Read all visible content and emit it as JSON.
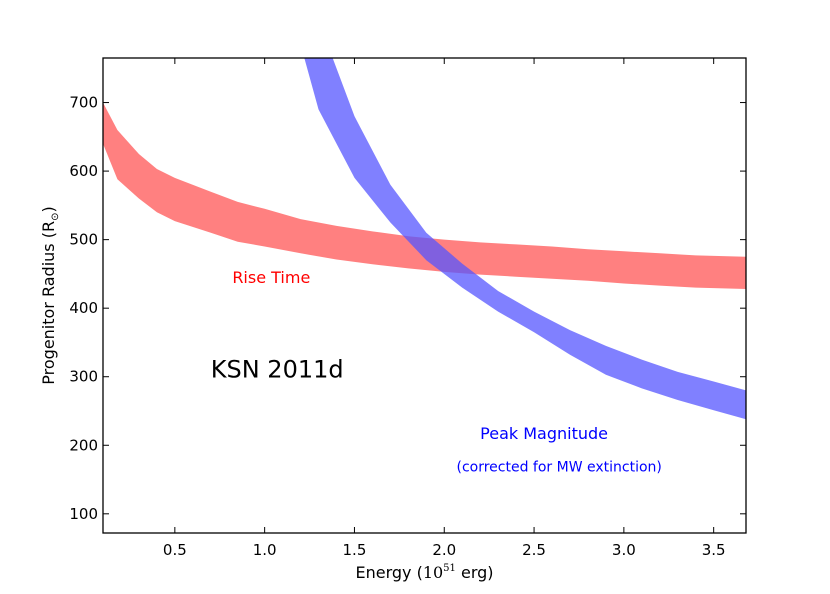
{
  "chart_data": {
    "type": "area",
    "title": "",
    "xlabel": {
      "prefix": "Energy (",
      "base": "10",
      "exp": "51",
      "suffix": " erg)"
    },
    "ylabel": {
      "prefix": "Progenitor Radius (R",
      "sub": "⊙",
      "suffix": ")"
    },
    "xlim": [
      0.1,
      3.68
    ],
    "ylim": [
      72,
      765
    ],
    "xticks": [
      0.5,
      1.0,
      1.5,
      2.0,
      2.5,
      3.0,
      3.5
    ],
    "xtick_labels": [
      "0.5",
      "1.0",
      "1.5",
      "2.0",
      "2.5",
      "3.0",
      "3.5"
    ],
    "yticks": [
      100,
      200,
      300,
      400,
      500,
      600,
      700
    ],
    "ytick_labels": [
      "100",
      "200",
      "300",
      "400",
      "500",
      "600",
      "700"
    ],
    "series": [
      {
        "name": "Rise Time",
        "color": "#ff5555",
        "opacity": 0.75,
        "x": [
          0.1,
          0.18,
          0.3,
          0.4,
          0.5,
          0.7,
          0.85,
          1.0,
          1.2,
          1.4,
          1.6,
          1.8,
          2.0,
          2.2,
          2.4,
          2.6,
          2.8,
          3.0,
          3.2,
          3.4,
          3.68
        ],
        "upper": [
          700,
          660,
          625,
          603,
          590,
          570,
          555,
          545,
          530,
          520,
          512,
          505,
          500,
          496,
          493,
          490,
          486,
          483,
          480,
          477,
          475
        ],
        "lower": [
          640,
          588,
          560,
          540,
          527,
          510,
          497,
          490,
          480,
          471,
          464,
          458,
          453,
          449,
          446,
          443,
          440,
          436,
          433,
          430,
          428
        ]
      },
      {
        "name": "Peak Magnitude",
        "color": "#5555ff",
        "opacity": 0.75,
        "x": [
          1.1,
          1.3,
          1.5,
          1.7,
          1.9,
          2.1,
          2.3,
          2.5,
          2.7,
          2.9,
          3.1,
          3.3,
          3.5,
          3.68
        ],
        "upper": [
          1050,
          820,
          680,
          580,
          510,
          465,
          425,
          395,
          368,
          345,
          325,
          307,
          293,
          280
        ],
        "lower": [
          880,
          690,
          590,
          525,
          470,
          430,
          395,
          365,
          332,
          303,
          283,
          266,
          251,
          238
        ]
      }
    ],
    "annotations": [
      {
        "text": "Rise Time",
        "color": "#ff0000",
        "x": 0.82,
        "y": 437,
        "size": 16,
        "anchor": "start"
      },
      {
        "text": "KSN 2011d",
        "color": "#000000",
        "x": 0.7,
        "y": 299,
        "size": 24,
        "anchor": "start"
      },
      {
        "text": "Peak Magnitude",
        "color": "#0000ff",
        "x": 2.2,
        "y": 209,
        "size": 16,
        "anchor": "start"
      },
      {
        "text": "(corrected for MW extinction)",
        "color": "#0000ff",
        "x": 2.64,
        "y": 162,
        "size": 14,
        "anchor": "middle"
      }
    ]
  }
}
